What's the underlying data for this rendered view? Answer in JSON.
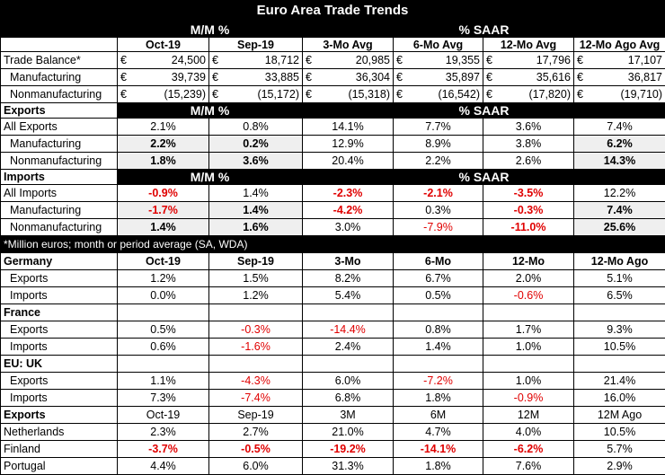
{
  "title": "Euro Area Trade Trends",
  "header": {
    "mm": "M/M %",
    "saar": "% SAAR"
  },
  "cols": [
    "Oct-19",
    "Sep-19",
    "3-Mo Avg",
    "6-Mo Avg",
    "12-Mo Avg",
    "12-Mo Ago Avg"
  ],
  "euro": "€",
  "balance": [
    {
      "label": "Trade Balance*",
      "vals": [
        "24,500",
        "18,712",
        "20,985",
        "19,355",
        "17,796",
        "17,107"
      ]
    },
    {
      "label": "Manufacturing",
      "vals": [
        "39,739",
        "33,885",
        "36,304",
        "35,897",
        "35,616",
        "36,817"
      ]
    },
    {
      "label": "Nonmanufacturing",
      "vals": [
        "(15,239)",
        "(15,172)",
        "(15,318)",
        "(16,542)",
        "(17,820)",
        "(19,710)"
      ]
    }
  ],
  "exports": {
    "heading": "Exports",
    "mm": "M/M %",
    "saar": "% SAAR",
    "rows": [
      {
        "label": "All Exports",
        "vals": [
          "2.1%",
          "0.8%",
          "14.1%",
          "7.7%",
          "3.6%",
          "7.4%"
        ]
      },
      {
        "label": "Manufacturing",
        "vals": [
          "2.2%",
          "0.2%",
          "12.9%",
          "8.9%",
          "3.8%",
          "6.2%"
        ]
      },
      {
        "label": "Nonmanufacturing",
        "vals": [
          "1.8%",
          "3.6%",
          "20.4%",
          "2.2%",
          "2.6%",
          "14.3%"
        ]
      }
    ]
  },
  "imports": {
    "heading": "Imports",
    "mm": "M/M %",
    "saar": "% SAAR",
    "rows": [
      {
        "label": "All Imports",
        "vals": [
          "-0.9%",
          "1.4%",
          "-2.3%",
          "-2.1%",
          "-3.5%",
          "12.2%"
        ]
      },
      {
        "label": "Manufacturing",
        "vals": [
          "-1.7%",
          "1.4%",
          "-4.2%",
          "0.3%",
          "-0.3%",
          "7.4%"
        ]
      },
      {
        "label": "Nonmanufacturing",
        "vals": [
          "1.4%",
          "1.6%",
          "3.0%",
          "-7.9%",
          "-11.0%",
          "25.6%"
        ]
      }
    ]
  },
  "note": "*Million euros; month or period average (SA, WDA)",
  "countries_header": [
    "Oct-19",
    "Sep-19",
    "3-Mo",
    "6-Mo",
    "12-Mo",
    "12-Mo Ago"
  ],
  "countries": [
    {
      "name": "Germany",
      "exports": [
        "1.2%",
        "1.5%",
        "8.2%",
        "6.7%",
        "2.0%",
        "5.1%"
      ],
      "imports": [
        "0.0%",
        "1.2%",
        "5.4%",
        "0.5%",
        "-0.6%",
        "6.5%"
      ]
    },
    {
      "name": "France",
      "exports": [
        "0.5%",
        "-0.3%",
        "-14.4%",
        "0.8%",
        "1.7%",
        "9.3%"
      ],
      "imports": [
        "0.6%",
        "-1.6%",
        "2.4%",
        "1.4%",
        "1.0%",
        "10.5%"
      ]
    },
    {
      "name": "EU: UK",
      "exports": [
        "1.1%",
        "-4.3%",
        "6.0%",
        "-7.2%",
        "1.0%",
        "21.4%"
      ],
      "imports": [
        "7.3%",
        "-7.4%",
        "6.8%",
        "1.8%",
        "-0.9%",
        "16.0%"
      ]
    }
  ],
  "sub_exports": "Exports",
  "sub_imports": "Imports",
  "exports2": {
    "heading": "Exports",
    "cols": [
      "Oct-19",
      "Sep-19",
      "3M",
      "6M",
      "12M",
      "12M Ago"
    ],
    "rows": [
      {
        "label": "Netherlands",
        "vals": [
          "2.3%",
          "2.7%",
          "21.0%",
          "4.7%",
          "4.0%",
          "10.5%"
        ]
      },
      {
        "label": "Finland",
        "vals": [
          "-3.7%",
          "-0.5%",
          "-19.2%",
          "-14.1%",
          "-6.2%",
          "5.7%"
        ]
      },
      {
        "label": "Portugal",
        "vals": [
          "4.4%",
          "6.0%",
          "31.3%",
          "1.8%",
          "7.6%",
          "2.9%"
        ]
      }
    ]
  }
}
